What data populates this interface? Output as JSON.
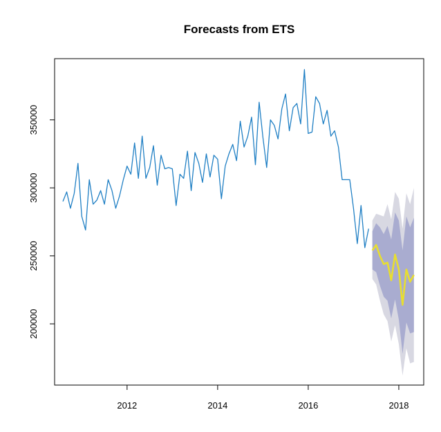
{
  "chart_data": {
    "type": "line",
    "title": "Forecasts from ETS",
    "xlabel": "",
    "ylabel": "",
    "xlim": [
      2010.4,
      2018.55
    ],
    "ylim": [
      155000,
      395000
    ],
    "x_ticks": [
      2012,
      2014,
      2016,
      2018
    ],
    "x_tick_labels": [
      "2012",
      "2014",
      "2016",
      "2018"
    ],
    "y_ticks": [
      200000,
      250000,
      300000,
      350000
    ],
    "y_tick_labels": [
      "200000",
      "250000",
      "300000",
      "350000"
    ],
    "grid": false,
    "legend": "none",
    "colors": {
      "history": "#1f7fc4",
      "forecast": "#e8de30",
      "band80": "#a9acd0",
      "band95": "#d8d8e2"
    },
    "series": [
      {
        "role": "history",
        "start": 2010.5833,
        "step": 0.08333,
        "values": [
          290000,
          297000,
          285000,
          296000,
          318000,
          279000,
          269000,
          306000,
          288000,
          291000,
          298000,
          288000,
          306000,
          298000,
          285000,
          294000,
          306000,
          316000,
          310000,
          333000,
          307000,
          338000,
          307000,
          315000,
          331000,
          302000,
          324000,
          314000,
          315000,
          314000,
          287000,
          310000,
          307000,
          327000,
          298000,
          326000,
          318000,
          304000,
          325000,
          308000,
          324000,
          321000,
          292000,
          316000,
          325000,
          332000,
          320000,
          349000,
          330000,
          338000,
          352000,
          317000,
          363000,
          337000,
          315000,
          350000,
          346000,
          336000,
          358000,
          369000,
          342000,
          359000,
          362000,
          347000,
          387000,
          340000,
          341000,
          367000,
          362000,
          347000,
          357000,
          338000,
          342000,
          330000,
          306000,
          306000,
          306000,
          285000,
          259000,
          287000,
          256000,
          270000
        ]
      },
      {
        "role": "forecast",
        "start": 2017.4167,
        "step": 0.08333,
        "values": [
          254000,
          258000,
          250000,
          244000,
          245000,
          232000,
          251000,
          240000,
          214000,
          240000,
          231000,
          236000
        ],
        "lo80": [
          240000,
          238000,
          228000,
          220000,
          217000,
          204000,
          218000,
          203000,
          178000,
          201000,
          193000,
          194000
        ],
        "hi80": [
          268000,
          274000,
          271000,
          266000,
          272000,
          262000,
          282000,
          276000,
          254000,
          279000,
          271000,
          278000
        ],
        "lo95": [
          233000,
          229000,
          217000,
          207000,
          202000,
          187000,
          199000,
          185000,
          162000,
          182000,
          171000,
          172000
        ],
        "hi95": [
          276000,
          281000,
          280000,
          279000,
          288000,
          277000,
          297000,
          292000,
          270000,
          296000,
          288000,
          300000
        ]
      }
    ]
  }
}
